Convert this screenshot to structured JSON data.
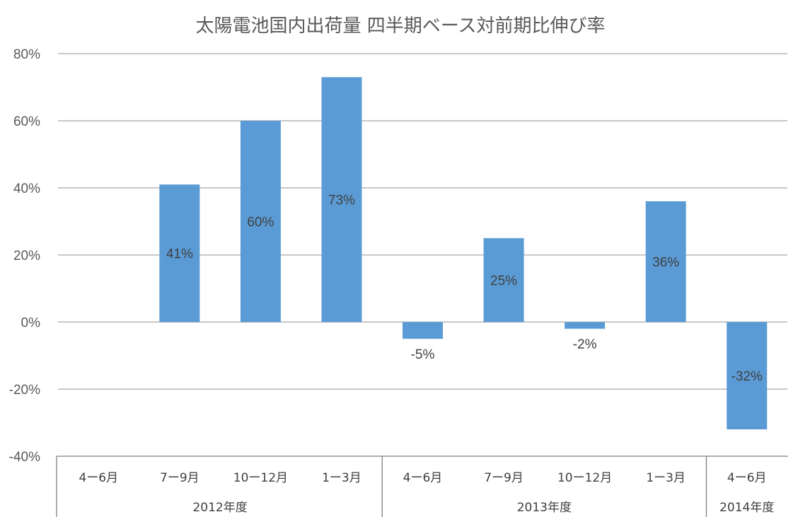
{
  "chart_data": {
    "type": "bar",
    "title": "太陽電池国内出荷量 四半期ベース対前期比伸び率",
    "categories": [
      "4ー6月",
      "7ー9月",
      "10ー12月",
      "1ー3月",
      "4ー6月",
      "7ー9月",
      "10ー12月",
      "1ー3月",
      "4ー6月"
    ],
    "groups": [
      {
        "label": "2012年度",
        "count": 4
      },
      {
        "label": "2013年度",
        "count": 4
      },
      {
        "label": "2014年度",
        "count": 1
      }
    ],
    "values": [
      0,
      41,
      60,
      73,
      -5,
      25,
      -2,
      36,
      -32
    ],
    "data_labels": [
      "",
      "41%",
      "60%",
      "73%",
      "-5%",
      "25%",
      "-2%",
      "36%",
      "-32%"
    ],
    "ylim": [
      -40,
      80
    ],
    "yticks": [
      80,
      60,
      40,
      20,
      0,
      -20,
      -40
    ],
    "ytick_labels": [
      "80%",
      "60%",
      "40%",
      "20%",
      "0%",
      "-20%",
      "-40%"
    ],
    "grid": true,
    "bar_color": "#5b9bd5"
  }
}
